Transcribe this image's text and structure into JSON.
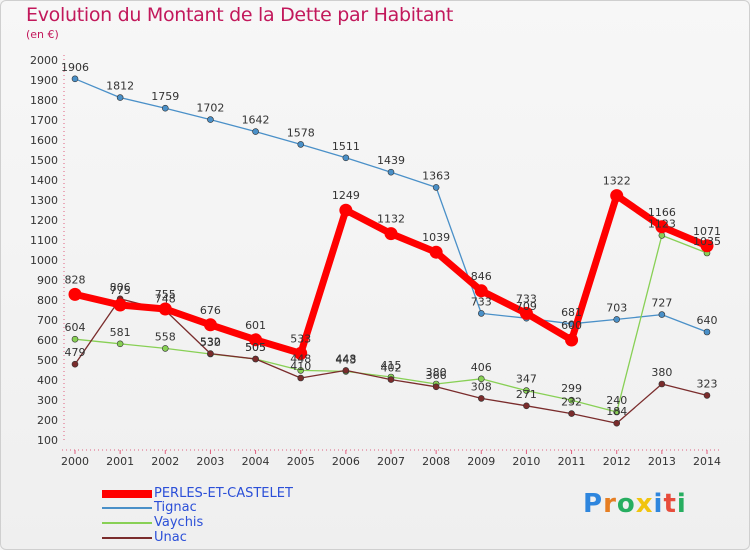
{
  "chart_data": {
    "type": "line",
    "title": "Evolution du Montant de la Dette par Habitant",
    "subtitle": "(en €)",
    "x": [
      "2000",
      "2001",
      "2002",
      "2003",
      "2004",
      "2005",
      "2006",
      "2007",
      "2008",
      "2009",
      "2010",
      "2011",
      "2012",
      "2013",
      "2014"
    ],
    "y_ticks": [
      "100",
      "200",
      "300",
      "400",
      "500",
      "600",
      "700",
      "800",
      "900",
      "1000",
      "1100",
      "1200",
      "1300",
      "1400",
      "1500",
      "1600",
      "1700",
      "1800",
      "1900",
      "2000"
    ],
    "ylim": [
      100,
      2000
    ],
    "grid": false,
    "legend_position": "bottom-left",
    "series": [
      {
        "name": "PERLES-ET-CASTELET",
        "color": "#ff0000",
        "values": [
          828,
          775,
          755,
          676,
          601,
          533,
          1249,
          1132,
          1039,
          846,
          733,
          600,
          1322,
          1166,
          1071
        ],
        "labels": [
          "828",
          "775",
          "755",
          "676",
          "601",
          "533",
          "1249",
          "1132",
          "1039",
          "846",
          "733",
          "600",
          "1322",
          "1166",
          "1071"
        ]
      },
      {
        "name": "Tignac",
        "color": "#4a90c8",
        "values": [
          1906,
          1812,
          1759,
          1702,
          1642,
          1578,
          1511,
          1439,
          1363,
          733,
          709,
          681,
          703,
          727,
          640
        ],
        "labels": [
          "1906",
          "1812",
          "1759",
          "1702",
          "1642",
          "1578",
          "1511",
          "1439",
          "1363",
          "733",
          "709",
          "681",
          "703",
          "727",
          "640"
        ]
      },
      {
        "name": "Vaychis",
        "color": "#88d055",
        "values": [
          604,
          581,
          558,
          530,
          505,
          448,
          443,
          415,
          380,
          406,
          347,
          299,
          240,
          1123,
          1035
        ],
        "labels": [
          "604",
          "581",
          "558",
          "530",
          "505",
          "448",
          "443",
          "415",
          "380",
          "406",
          "347",
          "299",
          "240",
          "1123",
          "1035"
        ]
      },
      {
        "name": "Unac",
        "color": "#7a2c2c",
        "values": [
          479,
          806,
          748,
          532,
          505,
          410,
          448,
          402,
          366,
          308,
          271,
          232,
          184,
          380,
          323
        ],
        "labels": [
          "479",
          "806",
          "748",
          "532",
          "505",
          "410",
          "448",
          "402",
          "366",
          "308",
          "271",
          "232",
          "184",
          "380",
          "323"
        ]
      }
    ]
  },
  "logo_text": "Proxiti"
}
